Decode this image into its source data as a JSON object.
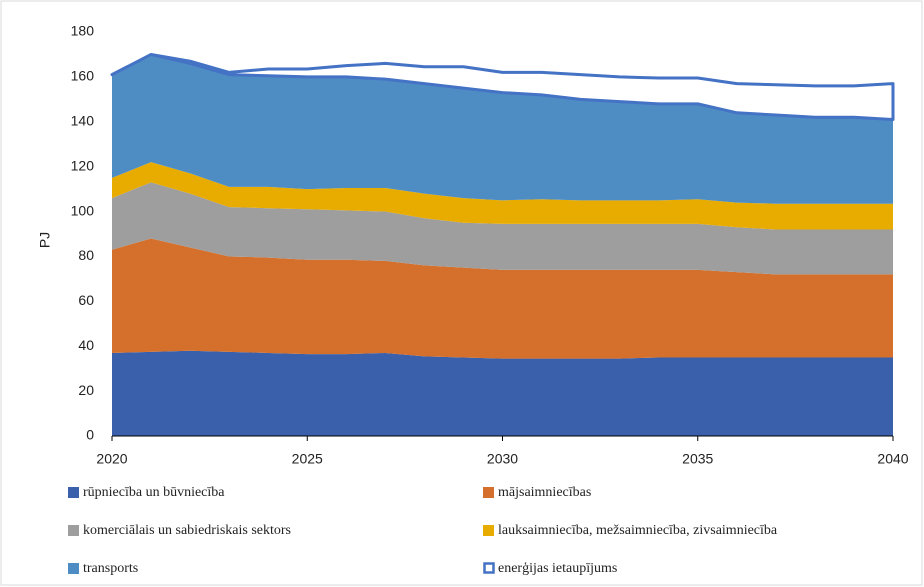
{
  "chart_data": {
    "type": "stacked_area",
    "y_label": "PJ",
    "x": [
      2020,
      2021,
      2022,
      2023,
      2024,
      2025,
      2026,
      2027,
      2028,
      2029,
      2030,
      2031,
      2032,
      2033,
      2034,
      2035,
      2036,
      2037,
      2038,
      2039,
      2040
    ],
    "xlim": [
      2020,
      2040
    ],
    "xticks": [
      2020,
      2025,
      2030,
      2035,
      2040
    ],
    "ylim": [
      0,
      180
    ],
    "yticks": [
      0,
      20,
      40,
      60,
      80,
      100,
      120,
      140,
      160,
      180
    ],
    "grid": false,
    "series": [
      {
        "name": "rūpniecība un būvniecība",
        "color": "#3a5fab",
        "values": [
          37,
          37.5,
          38,
          37.5,
          37,
          36.5,
          36.5,
          37,
          35.5,
          35,
          34.5,
          34.5,
          34.5,
          34.5,
          35,
          35,
          35,
          35,
          35,
          35,
          35
        ]
      },
      {
        "name": "mājsaimniecības",
        "color": "#d4702c",
        "values": [
          46,
          50.5,
          46,
          42.5,
          42.5,
          42,
          42,
          41,
          40.5,
          40,
          39.5,
          39.5,
          39.5,
          39.5,
          39,
          39,
          38,
          37,
          37,
          37,
          37
        ]
      },
      {
        "name": "komerciālais un sabiedriskais sektors",
        "color": "#9e9e9e",
        "values": [
          23,
          25,
          24,
          22,
          22,
          22.5,
          22,
          22,
          21,
          20,
          20.5,
          20.5,
          20.5,
          20.5,
          20.5,
          20.5,
          20,
          20,
          20,
          20,
          20
        ]
      },
      {
        "name": "lauksaimniecība, mežsaimniecība, zivsaimniecība",
        "color": "#e8ac00",
        "values": [
          9,
          9,
          9,
          9,
          9.5,
          9,
          10,
          10.5,
          11,
          11,
          10.5,
          11,
          10.5,
          10.5,
          10.5,
          11,
          11,
          11.5,
          11.5,
          11.5,
          11.5
        ]
      },
      {
        "name": "transports",
        "color": "#4e8dc4",
        "values": [
          46,
          48,
          49,
          50,
          49.5,
          50,
          49.5,
          48.5,
          49,
          49,
          48,
          46.5,
          45,
          44,
          43,
          42.5,
          40,
          39.5,
          38.5,
          38.5,
          37.5
        ]
      },
      {
        "name": "enerģijas ietaupījums",
        "color": "#4472c4",
        "outline": true,
        "values": [
          0,
          0,
          1,
          1,
          3,
          3.5,
          5,
          7,
          7.5,
          9.5,
          9,
          10,
          11,
          11,
          11.5,
          11.5,
          13,
          13.5,
          14,
          14,
          16
        ]
      }
    ]
  }
}
